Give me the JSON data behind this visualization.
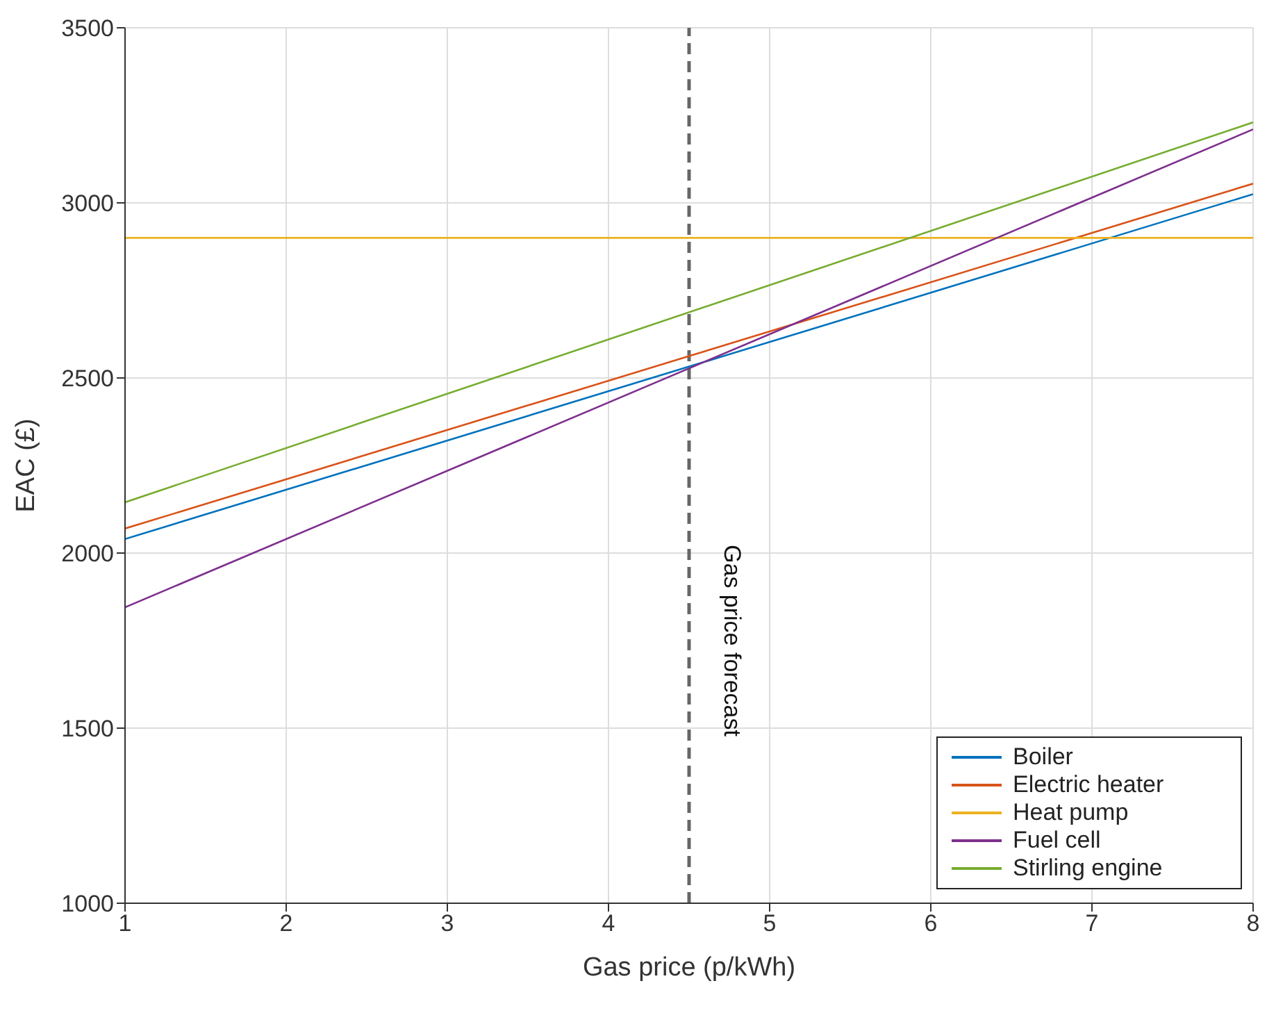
{
  "chart_data": {
    "type": "line",
    "xlabel": "Gas price (p/kWh)",
    "ylabel": "EAC (£)",
    "x": [
      1,
      8
    ],
    "series": [
      {
        "name": "Boiler",
        "color": "#0072bd",
        "values": [
          2040,
          3025
        ]
      },
      {
        "name": "Electric heater",
        "color": "#d95319",
        "values": [
          2070,
          3055
        ]
      },
      {
        "name": "Heat pump",
        "color": "#edb120",
        "values": [
          2900,
          2900
        ]
      },
      {
        "name": "Fuel cell",
        "color": "#7e2f8e",
        "values": [
          1845,
          3210
        ]
      },
      {
        "name": "Stirling engine",
        "color": "#77ac30",
        "values": [
          2145,
          3230
        ]
      }
    ],
    "xlim": [
      1,
      8
    ],
    "xticks": [
      1,
      2,
      3,
      4,
      5,
      6,
      7,
      8
    ],
    "ylim": [
      1000,
      3500
    ],
    "yticks": [
      1000,
      1500,
      2000,
      2500,
      3000,
      3500
    ],
    "ref_lines": [
      {
        "axis": "x",
        "value": 4.5,
        "label": "Gas price forecast",
        "color": "#666666",
        "line_style": "dashed"
      }
    ],
    "grid": true,
    "legend": "bottom right",
    "marker": "none",
    "line_style": "solid"
  }
}
